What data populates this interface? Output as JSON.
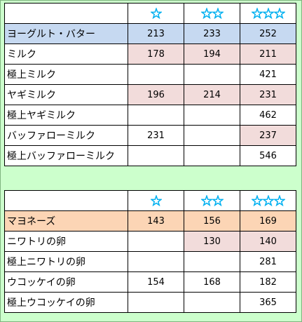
{
  "colors": {
    "background": "#ccffcc",
    "star": "#00b0f0",
    "highlight_blue": "#c6d9f1",
    "highlight_pink": "#f2dcdb",
    "highlight_orange": "#fcd5b5"
  },
  "header": {
    "icons": [
      "star-icon",
      "star-icon",
      "star-icon"
    ],
    "star_counts": [
      1,
      2,
      3
    ]
  },
  "table1": {
    "rows": [
      {
        "label": "ヨーグルト・バター",
        "v1": "213",
        "v2": "233",
        "v3": "252"
      },
      {
        "label": "ミルク",
        "v1": "178",
        "v2": "194",
        "v3": "211"
      },
      {
        "label": "極上ミルク",
        "v1": "",
        "v2": "",
        "v3": "421"
      },
      {
        "label": "ヤギミルク",
        "v1": "196",
        "v2": "214",
        "v3": "231"
      },
      {
        "label": "極上ヤギミルク",
        "v1": "",
        "v2": "",
        "v3": "462"
      },
      {
        "label": "バッファローミルク",
        "v1": "231",
        "v2": "",
        "v3": "237"
      },
      {
        "label": "極上バッファローミルク",
        "v1": "",
        "v2": "",
        "v3": "546"
      }
    ]
  },
  "table2": {
    "rows": [
      {
        "label": "マヨネーズ",
        "v1": "143",
        "v2": "156",
        "v3": "169"
      },
      {
        "label": "ニワトリの卵",
        "v1": "",
        "v2": "130",
        "v3": "140"
      },
      {
        "label": "極上ニワトリの卵",
        "v1": "",
        "v2": "",
        "v3": "281"
      },
      {
        "label": "ウコッケイの卵",
        "v1": "154",
        "v2": "168",
        "v3": "182"
      },
      {
        "label": "極上ウコッケイの卵",
        "v1": "",
        "v2": "",
        "v3": "365"
      }
    ]
  }
}
